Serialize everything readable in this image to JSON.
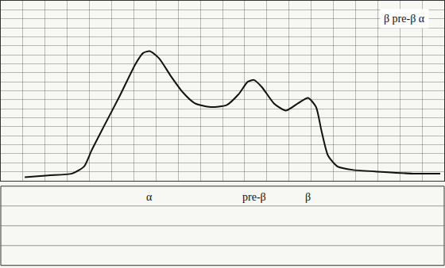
{
  "chart_data": {
    "type": "line",
    "x": [
      5.4,
      10.7,
      16.1,
      18.8,
      20.5,
      23.2,
      26.8,
      30.4,
      32.1,
      33.6,
      35.7,
      38.4,
      41.1,
      43.8,
      47.3,
      50.9,
      53.6,
      55.7,
      57.1,
      58.9,
      61.6,
      64.3,
      67,
      69.3,
      71.1,
      72.3,
      73.8,
      75.9,
      79.5,
      85.7,
      92.9,
      99.1
    ],
    "values": [
      2,
      3,
      4,
      8,
      17,
      30,
      47,
      65,
      71,
      72,
      68,
      58,
      49,
      43,
      41,
      42,
      48,
      55,
      56,
      52,
      43,
      39,
      43,
      46,
      41,
      28,
      14,
      8,
      6,
      5,
      4,
      4
    ],
    "color": "#111111",
    "xlim": [
      0,
      100
    ],
    "ylim": [
      0,
      100
    ],
    "xticks": [
      0,
      5,
      10,
      15,
      20,
      25,
      30,
      35,
      40,
      45,
      50,
      55,
      60,
      65,
      70,
      75,
      80,
      85,
      90,
      95,
      100
    ],
    "yticks": [
      0,
      5,
      10,
      15,
      20,
      25,
      30,
      35,
      40,
      45,
      50,
      55,
      60,
      65,
      70,
      75,
      80,
      85,
      90,
      95,
      100
    ],
    "grid": true,
    "tick_labels": false,
    "annotations": [
      {
        "text": "β pre-β α",
        "x": 91,
        "y": 90
      },
      {
        "text": "α",
        "x": 33.6
      },
      {
        "text": "pre-β",
        "x": 57.1
      },
      {
        "text": "β",
        "x": 69.3
      }
    ]
  }
}
